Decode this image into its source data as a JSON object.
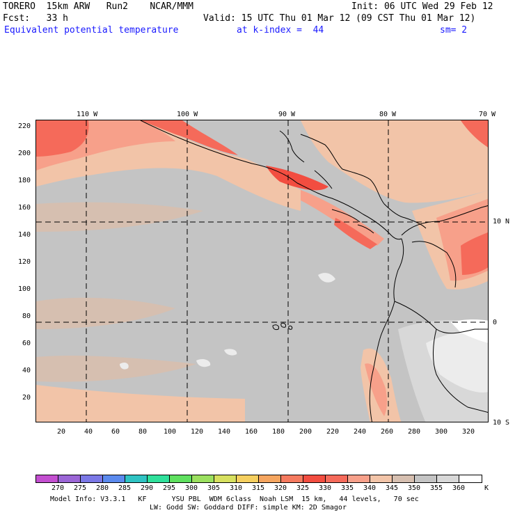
{
  "header": {
    "model": "TORERO  15km ARW   Run2    NCAR/MMM",
    "init": "Init: 06 UTC Wed 29 Feb 12",
    "fcst": "Fcst:   33 h",
    "valid": "Valid: 15 UTC Thu 01 Mar 12 (09 CST Thu 01 Mar 12)",
    "field": "Equivalent potential temperature",
    "level": "at k-index =  44",
    "smoothing": "sm= 2"
  },
  "map": {
    "longitude_labels": [
      "110 W",
      "100 W",
      "90 W",
      "80 W",
      "70 W"
    ],
    "latitude_labels": [
      "10 N",
      "0",
      "10 S"
    ],
    "y_grid_labels": [
      "220",
      "200",
      "180",
      "160",
      "140",
      "120",
      "100",
      "80",
      "60",
      "40",
      "20"
    ],
    "x_grid_labels": [
      "20",
      "40",
      "60",
      "80",
      "100",
      "120",
      "140",
      "160",
      "180",
      "200",
      "220",
      "240",
      "260",
      "280",
      "300",
      "320"
    ],
    "background_color": "#c4c4c4",
    "coast_color": "#000000"
  },
  "colorbar": {
    "unit": "K",
    "levels": [
      "270",
      "275",
      "280",
      "285",
      "290",
      "295",
      "300",
      "305",
      "310",
      "315",
      "320",
      "325",
      "330",
      "335",
      "340",
      "345",
      "350",
      "355",
      "360"
    ],
    "colors": [
      "#c34fd0",
      "#9b66d6",
      "#7b78e6",
      "#5b8aee",
      "#2fc3c3",
      "#2fe09b",
      "#5fe05f",
      "#9be05f",
      "#d7e05f",
      "#f5cf5f",
      "#f5a55f",
      "#f57a5f",
      "#f24d40",
      "#f56a5a",
      "#f7a08a",
      "#f2c4a8",
      "#d6bfb0",
      "#c4c4c4",
      "#d8d8d8",
      "#ffffff"
    ]
  },
  "footer": {
    "line1": "Model Info: V3.3.1   KF      YSU PBL  WDM 6class  Noah LSM  15 km,   44 levels,   70 sec",
    "line2": "LW: Godd SW: Goddard DIFF: simple KM: 2D Smagor"
  }
}
